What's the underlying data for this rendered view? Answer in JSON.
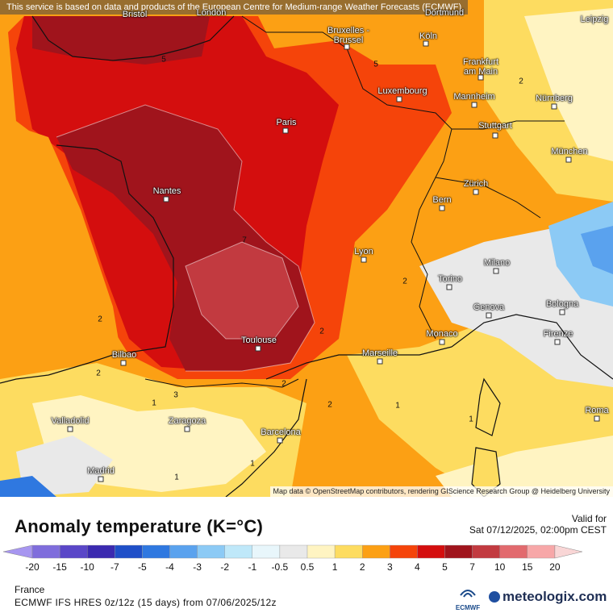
{
  "banner": "This service is based on data and products of the European Centre for Medium-range Weather Forecasts (ECMWF)",
  "attribution": "Map data © OpenStreetMap contributors, rendering GIScience Research Group @ Heidelberg University",
  "title": "Anomaly temperature (K=°C)",
  "valid_label": "Valid for",
  "valid_date": "Sat 07/12/2025, 02:00pm CEST",
  "region": "France",
  "model": "ECMWF IFS HRES 0z/12z (15 days) from 07/06/2025/12z",
  "ecmwf_logo_text": "ECMWF",
  "brand": "meteologix.com",
  "cities": [
    {
      "name": "Bristol",
      "id": "bristol"
    },
    {
      "name": "London",
      "id": "london"
    },
    {
      "name": "Dortmund",
      "id": "dortmund"
    },
    {
      "name": "Leipzig",
      "id": "leipzig"
    },
    {
      "name": "Bruxelles - Brussel",
      "id": "brussels"
    },
    {
      "name": "Köln",
      "id": "koln"
    },
    {
      "name": "Frankfurt am Main",
      "id": "frankfurt"
    },
    {
      "name": "Luxembourg",
      "id": "luxembourg"
    },
    {
      "name": "Mannheim",
      "id": "mannheim"
    },
    {
      "name": "Nürnberg",
      "id": "nurnberg"
    },
    {
      "name": "Paris",
      "id": "paris"
    },
    {
      "name": "Stuttgart",
      "id": "stuttgart"
    },
    {
      "name": "München",
      "id": "munchen"
    },
    {
      "name": "Nantes",
      "id": "nantes"
    },
    {
      "name": "Zürich",
      "id": "zurich"
    },
    {
      "name": "Bern",
      "id": "bern"
    },
    {
      "name": "Lyon",
      "id": "lyon"
    },
    {
      "name": "Milano",
      "id": "milano"
    },
    {
      "name": "Torino",
      "id": "torino"
    },
    {
      "name": "Genova",
      "id": "genova"
    },
    {
      "name": "Bologna",
      "id": "bologna"
    },
    {
      "name": "Monaco",
      "id": "monaco"
    },
    {
      "name": "Firenze",
      "id": "firenze"
    },
    {
      "name": "Toulouse",
      "id": "toulouse"
    },
    {
      "name": "Marseille",
      "id": "marseille"
    },
    {
      "name": "Bilbao",
      "id": "bilbao"
    },
    {
      "name": "Valladolid",
      "id": "valladolid"
    },
    {
      "name": "Zaragoza",
      "id": "zaragoza"
    },
    {
      "name": "Barcelona",
      "id": "barcelona"
    },
    {
      "name": "Roma",
      "id": "roma"
    },
    {
      "name": "Madrid",
      "id": "madrid"
    }
  ],
  "contour_labels": [
    "5",
    "5",
    "2",
    "2",
    "7",
    "2",
    "2",
    "2",
    "2",
    "3",
    "1",
    "1",
    "1",
    "2",
    "1",
    "1"
  ],
  "legend": {
    "ticks": [
      "-20",
      "-15",
      "-10",
      "-7",
      "-5",
      "-4",
      "-3",
      "-2",
      "-1",
      "-0.5",
      "0.5",
      "1",
      "2",
      "3",
      "4",
      "5",
      "7",
      "10",
      "15",
      "20"
    ],
    "colors": [
      "#a796f0",
      "#7f6ddc",
      "#5a47c8",
      "#3b2ab0",
      "#1f4fc8",
      "#2f78e0",
      "#5aa2ee",
      "#8ccaf5",
      "#bfe8f9",
      "#e8f6fb",
      "#e9e9e9",
      "#fff4c2",
      "#fddc60",
      "#fca014",
      "#f5440a",
      "#d40e0e",
      "#a0141c",
      "#c23a40",
      "#e26a6e",
      "#f7a7a8",
      "#f9d6d6"
    ]
  }
}
